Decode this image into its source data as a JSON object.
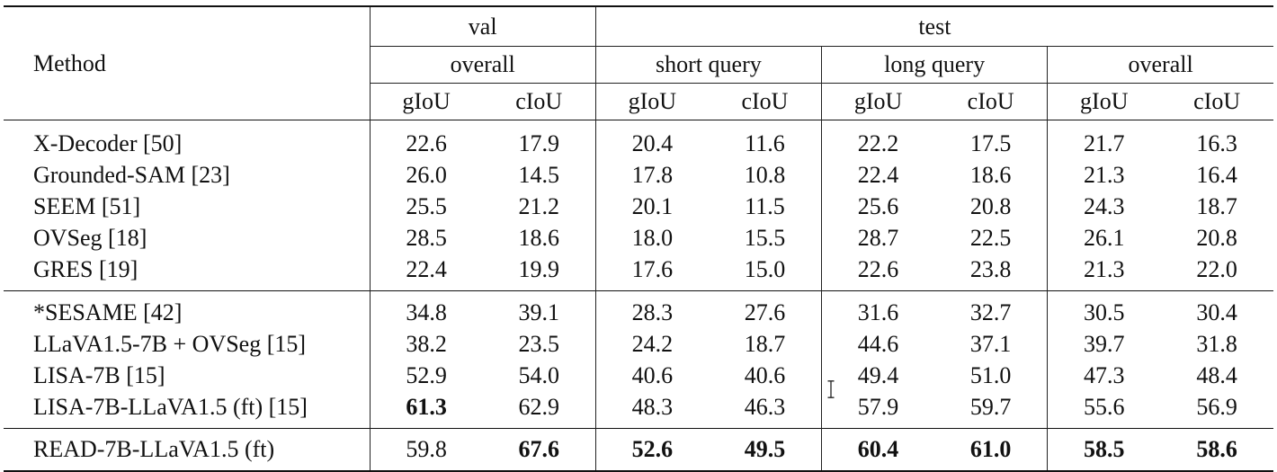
{
  "header": {
    "method_label": "Method",
    "groups": [
      {
        "label": "val",
        "span": 2
      },
      {
        "label": "test",
        "span": 6
      }
    ],
    "subgroups": [
      {
        "label": "overall",
        "span": 2
      },
      {
        "label": "short query",
        "span": 2
      },
      {
        "label": "long query",
        "span": 2
      },
      {
        "label": "overall",
        "span": 2
      }
    ],
    "metrics": [
      "gIoU",
      "cIoU",
      "gIoU",
      "cIoU",
      "gIoU",
      "cIoU",
      "gIoU",
      "cIoU"
    ]
  },
  "rows": [
    {
      "method": "X-Decoder [50]",
      "values": [
        "22.6",
        "17.9",
        "20.4",
        "11.6",
        "22.2",
        "17.5",
        "21.7",
        "16.3"
      ],
      "bold": []
    },
    {
      "method": "Grounded-SAM [23]",
      "values": [
        "26.0",
        "14.5",
        "17.8",
        "10.8",
        "22.4",
        "18.6",
        "21.3",
        "16.4"
      ],
      "bold": []
    },
    {
      "method": "SEEM [51]",
      "values": [
        "25.5",
        "21.2",
        "20.1",
        "11.5",
        "25.6",
        "20.8",
        "24.3",
        "18.7"
      ],
      "bold": []
    },
    {
      "method": "OVSeg [18]",
      "values": [
        "28.5",
        "18.6",
        "18.0",
        "15.5",
        "28.7",
        "22.5",
        "26.1",
        "20.8"
      ],
      "bold": []
    },
    {
      "method": "GRES [19]",
      "values": [
        "22.4",
        "19.9",
        "17.6",
        "15.0",
        "22.6",
        "23.8",
        "21.3",
        "22.0"
      ],
      "bold": []
    },
    {
      "method": "*SESAME [42]",
      "values": [
        "34.8",
        "39.1",
        "28.3",
        "27.6",
        "31.6",
        "32.7",
        "30.5",
        "30.4"
      ],
      "bold": []
    },
    {
      "method": "LLaVA1.5-7B + OVSeg [15]",
      "values": [
        "38.2",
        "23.5",
        "24.2",
        "18.7",
        "44.6",
        "37.1",
        "39.7",
        "31.8"
      ],
      "bold": []
    },
    {
      "method": "LISA-7B [15]",
      "values": [
        "52.9",
        "54.0",
        "40.6",
        "40.6",
        "49.4",
        "51.0",
        "47.3",
        "48.4"
      ],
      "bold": []
    },
    {
      "method": "LISA-7B-LLaVA1.5 (ft) [15]",
      "values": [
        "61.3",
        "62.9",
        "48.3",
        "46.3",
        "57.9",
        "59.7",
        "55.6",
        "56.9"
      ],
      "bold": [
        0
      ]
    },
    {
      "method": "READ-7B-LLaVA1.5 (ft)",
      "values": [
        "59.8",
        "67.6",
        "52.6",
        "49.5",
        "60.4",
        "61.0",
        "58.5",
        "58.6"
      ],
      "bold": [
        1,
        2,
        3,
        4,
        5,
        6,
        7
      ]
    }
  ],
  "cursor": {
    "icon": "text-cursor-icon",
    "glyph": "I"
  }
}
